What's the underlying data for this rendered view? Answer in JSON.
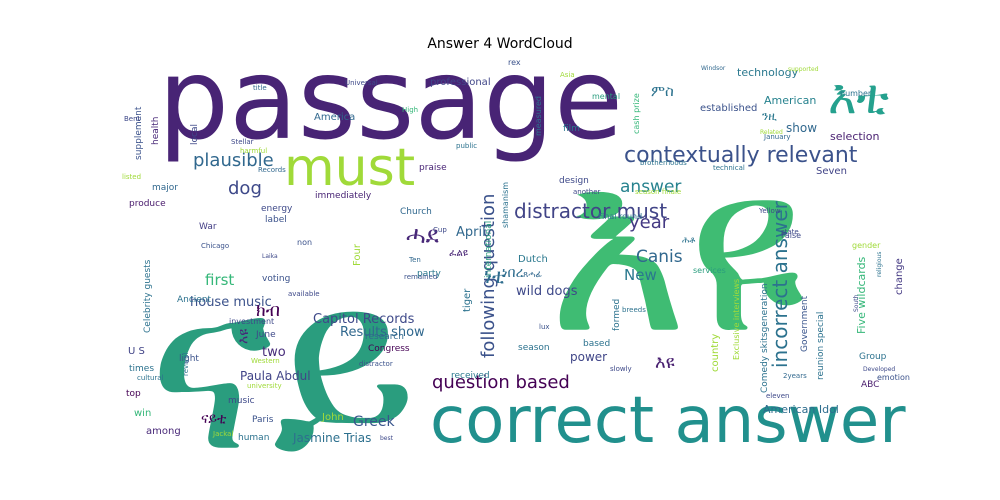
{
  "chart_data": {
    "type": "wordcloud",
    "title": "Answer 4 WordCloud",
    "words": [
      {
        "text": "passage",
        "weight": 1.0,
        "color": "#482475",
        "orient": "h"
      },
      {
        "text": "ናይ",
        "weight": 0.98,
        "color": "#2a9d7e",
        "orient": "h"
      },
      {
        "text": "እዩ",
        "weight": 0.96,
        "color": "#3fbc73",
        "orient": "h"
      },
      {
        "text": "correct answer",
        "weight": 0.62,
        "color": "#21908d",
        "orient": "h"
      },
      {
        "text": "must",
        "weight": 0.45,
        "color": "#a0da39",
        "orient": "h"
      },
      {
        "text": "እቲ",
        "weight": 0.42,
        "color": "#25a18e",
        "orient": "h"
      },
      {
        "text": "contextually relevant",
        "weight": 0.3,
        "color": "#3b528b",
        "orient": "h"
      },
      {
        "text": "distractor must",
        "weight": 0.27,
        "color": "#414487",
        "orient": "h"
      },
      {
        "text": "incorrect answer",
        "weight": 0.27,
        "color": "#2c728e",
        "orient": "v"
      },
      {
        "text": "following question",
        "weight": 0.26,
        "color": "#3b528b",
        "orient": "v"
      },
      {
        "text": "question based",
        "weight": 0.25,
        "color": "#440154",
        "orient": "h"
      },
      {
        "text": "plausible",
        "weight": 0.22,
        "color": "#31688e",
        "orient": "h"
      },
      {
        "text": "dog",
        "weight": 0.21,
        "color": "#3e4989",
        "orient": "h"
      },
      {
        "text": "year",
        "weight": 0.21,
        "color": "#443983",
        "orient": "h"
      },
      {
        "text": "ሓደ",
        "weight": 0.2,
        "color": "#482878",
        "orient": "h"
      },
      {
        "text": "answer",
        "weight": 0.18,
        "color": "#26828e",
        "orient": "h"
      },
      {
        "text": "Canis",
        "weight": 0.18,
        "color": "#31688e",
        "orient": "h"
      },
      {
        "text": "New",
        "weight": 0.17,
        "color": "#2a788e",
        "orient": "h"
      },
      {
        "text": "first",
        "weight": 0.16,
        "color": "#35b779",
        "orient": "h"
      },
      {
        "text": "house music",
        "weight": 0.14,
        "color": "#3b528b",
        "orient": "h"
      },
      {
        "text": "Results show",
        "weight": 0.14,
        "color": "#31688e",
        "orient": "h"
      },
      {
        "text": "Capitol Records",
        "weight": 0.14,
        "color": "#3e4989",
        "orient": "h"
      },
      {
        "text": "two",
        "weight": 0.14,
        "color": "#472c7a",
        "orient": "h"
      },
      {
        "text": "wild dogs",
        "weight": 0.14,
        "color": "#3e4989",
        "orient": "h"
      },
      {
        "text": "Paula Abdul",
        "weight": 0.13,
        "color": "#414487",
        "orient": "h"
      },
      {
        "text": "power",
        "weight": 0.13,
        "color": "#404688",
        "orient": "h"
      },
      {
        "text": "Greek",
        "weight": 0.14,
        "color": "#39558c",
        "orient": "h"
      },
      {
        "text": "Jasmine Trias",
        "weight": 0.12,
        "color": "#2d708e",
        "orient": "h"
      },
      {
        "text": "American Idol",
        "weight": 0.12,
        "color": "#2e6d8e",
        "orient": "h"
      },
      {
        "text": "American",
        "weight": 0.12,
        "color": "#26828e",
        "orient": "h"
      },
      {
        "text": "show",
        "weight": 0.12,
        "color": "#31688e",
        "orient": "h"
      },
      {
        "text": "technology",
        "weight": 0.11,
        "color": "#2a788e",
        "orient": "h"
      },
      {
        "text": "April",
        "weight": 0.13,
        "color": "#31688e",
        "orient": "h"
      },
      {
        "text": "ነበረ",
        "weight": 0.13,
        "color": "#2e6d8e",
        "orient": "h"
      },
      {
        "text": "Five wildcards",
        "weight": 0.11,
        "color": "#35b779",
        "orient": "v"
      },
      {
        "text": "Comedy skitsgeneration",
        "weight": 0.09,
        "color": "#2c728e",
        "orient": "v"
      },
      {
        "text": "reunion special",
        "weight": 0.09,
        "color": "#2c728e",
        "orient": "v"
      },
      {
        "text": "Government",
        "weight": 0.09,
        "color": "#39558c",
        "orient": "v"
      },
      {
        "text": "change",
        "weight": 0.1,
        "color": "#443983",
        "orient": "v"
      },
      {
        "text": "selection",
        "weight": 0.1,
        "color": "#481f70",
        "orient": "h"
      },
      {
        "text": "Seven",
        "weight": 0.1,
        "color": "#414487",
        "orient": "h"
      },
      {
        "text": "America",
        "weight": 0.1,
        "color": "#31688e",
        "orient": "h"
      },
      {
        "text": "professional",
        "weight": 0.1,
        "color": "#404688",
        "orient": "h"
      },
      {
        "text": "immediately",
        "weight": 0.09,
        "color": "#482475",
        "orient": "h"
      },
      {
        "text": "label",
        "weight": 0.09,
        "color": "#3b528b",
        "orient": "h"
      },
      {
        "text": "War",
        "weight": 0.09,
        "color": "#433e85",
        "orient": "h"
      },
      {
        "text": "produce",
        "weight": 0.09,
        "color": "#481a6c",
        "orient": "h"
      },
      {
        "text": "major",
        "weight": 0.09,
        "color": "#31688e",
        "orient": "h"
      },
      {
        "text": "voting",
        "weight": 0.09,
        "color": "#3b528b",
        "orient": "h"
      },
      {
        "text": "Ancient",
        "weight": 0.09,
        "color": "#2c728e",
        "orient": "h"
      },
      {
        "text": "times",
        "weight": 0.09,
        "color": "#2c728e",
        "orient": "h"
      },
      {
        "text": "top",
        "weight": 0.09,
        "color": "#440154",
        "orient": "h"
      },
      {
        "text": "win",
        "weight": 0.09,
        "color": "#35b779",
        "orient": "h"
      },
      {
        "text": "among",
        "weight": 0.09,
        "color": "#482878",
        "orient": "h"
      },
      {
        "text": "human",
        "weight": 0.09,
        "color": "#2c728e",
        "orient": "h"
      },
      {
        "text": "John",
        "weight": 0.09,
        "color": "#a0da39",
        "orient": "h"
      },
      {
        "text": "party",
        "weight": 0.09,
        "color": "#2a788e",
        "orient": "h"
      },
      {
        "text": "based",
        "weight": 0.09,
        "color": "#2c728e",
        "orient": "h"
      },
      {
        "text": "season",
        "weight": 0.09,
        "color": "#2c728e",
        "orient": "h"
      },
      {
        "text": "received",
        "weight": 0.08,
        "color": "#2a788e",
        "orient": "h"
      },
      {
        "text": "Congress",
        "weight": 0.08,
        "color": "#440154",
        "orient": "h"
      },
      {
        "text": "research",
        "weight": 0.08,
        "color": "#31688e",
        "orient": "h"
      },
      {
        "text": "June",
        "weight": 0.08,
        "color": "#3e4989",
        "orient": "h"
      },
      {
        "text": "Dutch",
        "weight": 0.08,
        "color": "#2a788e",
        "orient": "h"
      },
      {
        "text": "Group",
        "weight": 0.08,
        "color": "#2c728e",
        "orient": "h"
      },
      {
        "text": "ABC",
        "weight": 0.08,
        "color": "#481a6c",
        "orient": "h"
      },
      {
        "text": "services",
        "weight": 0.08,
        "color": "#2a9d7e",
        "orient": "h"
      },
      {
        "text": "established",
        "weight": 0.08,
        "color": "#3b528b",
        "orient": "h"
      },
      {
        "text": "film",
        "weight": 0.08,
        "color": "#2a788e",
        "orient": "h"
      },
      {
        "text": "design",
        "weight": 0.07,
        "color": "#3e4989",
        "orient": "h"
      },
      {
        "text": "energy",
        "weight": 0.07,
        "color": "#3e4989",
        "orient": "h"
      },
      {
        "text": "Church",
        "weight": 0.07,
        "color": "#31688e",
        "orient": "h"
      },
      {
        "text": "praise",
        "weight": 0.07,
        "color": "#482475",
        "orient": "h"
      },
      {
        "text": "music",
        "weight": 0.07,
        "color": "#3e4989",
        "orient": "h"
      },
      {
        "text": "Paris",
        "weight": 0.07,
        "color": "#3b528b",
        "orient": "h"
      },
      {
        "text": "light",
        "weight": 0.07,
        "color": "#3b528b",
        "orient": "h"
      },
      {
        "text": "U S",
        "weight": 0.08,
        "color": "#414487",
        "orient": "h"
      },
      {
        "text": "investment",
        "weight": 0.07,
        "color": "#3e4989",
        "orient": "h"
      },
      {
        "text": "technical",
        "weight": 0.06,
        "color": "#2c728e",
        "orient": "h"
      },
      {
        "text": "mental",
        "weight": 0.06,
        "color": "#2a9d7e",
        "orient": "h"
      },
      {
        "text": "number",
        "weight": 0.06,
        "color": "#2c728e",
        "orient": "h"
      },
      {
        "text": "title",
        "weight": 0.06,
        "color": "#31688e",
        "orient": "h"
      },
      {
        "text": "Universal",
        "weight": 0.06,
        "color": "#3e4989",
        "orient": "h"
      },
      {
        "text": "High",
        "weight": 0.06,
        "color": "#35b779",
        "orient": "h"
      },
      {
        "text": "public",
        "weight": 0.06,
        "color": "#2c728e",
        "orient": "h"
      },
      {
        "text": "Records",
        "weight": 0.06,
        "color": "#31688e",
        "orient": "h"
      },
      {
        "text": "Stellar",
        "weight": 0.06,
        "color": "#3e4989",
        "orient": "h"
      },
      {
        "text": "harmful",
        "weight": 0.06,
        "color": "#a0da39",
        "orient": "h"
      },
      {
        "text": "local",
        "weight": 0.07,
        "color": "#3e4989",
        "orient": "v"
      },
      {
        "text": "supplement",
        "weight": 0.07,
        "color": "#3b528b",
        "orient": "v"
      },
      {
        "text": "health",
        "weight": 0.07,
        "color": "#482878",
        "orient": "v"
      },
      {
        "text": "Bent",
        "weight": 0.06,
        "color": "#3e4989",
        "orient": "h"
      },
      {
        "text": "listed",
        "weight": 0.06,
        "color": "#a0da39",
        "orient": "h"
      },
      {
        "text": "Celebrity guests",
        "weight": 0.08,
        "color": "#2c728e",
        "orient": "v"
      },
      {
        "text": "Chicago",
        "weight": 0.06,
        "color": "#3b528b",
        "orient": "h"
      },
      {
        "text": "available",
        "weight": 0.05,
        "color": "#3e4989",
        "orient": "h"
      },
      {
        "text": "non",
        "weight": 0.06,
        "color": "#3b528b",
        "orient": "h"
      },
      {
        "text": "Four",
        "weight": 0.07,
        "color": "#a0da39",
        "orient": "v"
      },
      {
        "text": "Western",
        "weight": 0.06,
        "color": "#a0da39",
        "orient": "h"
      },
      {
        "text": "university",
        "weight": 0.05,
        "color": "#a0da39",
        "orient": "h"
      },
      {
        "text": "cultural",
        "weight": 0.05,
        "color": "#2c728e",
        "orient": "h"
      },
      {
        "text": "revival",
        "weight": 0.05,
        "color": "#2c728e",
        "orient": "v"
      },
      {
        "text": "Jackal",
        "weight": 0.05,
        "color": "#a0da39",
        "orient": "h"
      },
      {
        "text": "best",
        "weight": 0.05,
        "color": "#3e4989",
        "orient": "h"
      },
      {
        "text": "distractor",
        "weight": 0.06,
        "color": "#3b528b",
        "orient": "h"
      },
      {
        "text": "remained",
        "weight": 0.06,
        "color": "#3b528b",
        "orient": "h"
      },
      {
        "text": "Ten",
        "weight": 0.05,
        "color": "#31688e",
        "orient": "h"
      },
      {
        "text": "tiger",
        "weight": 0.07,
        "color": "#2c728e",
        "orient": "v"
      },
      {
        "text": "international",
        "weight": 0.06,
        "color": "#2a9d7e",
        "orient": "v"
      },
      {
        "text": "shamanism",
        "weight": 0.05,
        "color": "#2c728e",
        "orient": "v"
      },
      {
        "text": "Cup",
        "weight": 0.06,
        "color": "#3e4989",
        "orient": "h"
      },
      {
        "text": "lux",
        "weight": 0.05,
        "color": "#3b528b",
        "orient": "h"
      },
      {
        "text": "formed",
        "weight": 0.06,
        "color": "#2c728e",
        "orient": "v"
      },
      {
        "text": "slowly",
        "weight": 0.06,
        "color": "#3e4989",
        "orient": "h"
      },
      {
        "text": "breeds",
        "weight": 0.06,
        "color": "#2c728e",
        "orient": "h"
      },
      {
        "text": "country",
        "weight": 0.07,
        "color": "#a0da39",
        "orient": "v"
      },
      {
        "text": "Exclusive interviews",
        "weight": 0.06,
        "color": "#a0da39",
        "orient": "v"
      },
      {
        "text": "season finale",
        "weight": 0.06,
        "color": "#a0da39",
        "orient": "h"
      },
      {
        "text": "Final round",
        "weight": 0.06,
        "color": "#2c728e",
        "orient": "h"
      },
      {
        "text": "brotherhoods",
        "weight": 0.06,
        "color": "#2c728e",
        "orient": "h"
      },
      {
        "text": "another",
        "weight": 0.05,
        "color": "#3e4989",
        "orient": "h"
      },
      {
        "text": "measured",
        "weight": 0.06,
        "color": "#2c728e",
        "orient": "v"
      },
      {
        "text": "cash prize",
        "weight": 0.06,
        "color": "#35b779",
        "orient": "v"
      },
      {
        "text": "rex",
        "weight": 0.05,
        "color": "#3b528b",
        "orient": "h"
      },
      {
        "text": "Asia",
        "weight": 0.04,
        "color": "#a0da39",
        "orient": "h"
      },
      {
        "text": "Windsor",
        "weight": 0.04,
        "color": "#31688e",
        "orient": "h"
      },
      {
        "text": "supported",
        "weight": 0.04,
        "color": "#a0da39",
        "orient": "h"
      },
      {
        "text": "Related",
        "weight": 0.05,
        "color": "#a0da39",
        "orient": "h"
      },
      {
        "text": "January",
        "weight": 0.05,
        "color": "#31688e",
        "orient": "h"
      },
      {
        "text": "Yellow",
        "weight": 0.06,
        "color": "#3e4989",
        "orient": "h"
      },
      {
        "text": "state",
        "weight": 0.06,
        "color": "#3e4989",
        "orient": "h"
      },
      {
        "text": "False",
        "weight": 0.06,
        "color": "#3e4989",
        "orient": "h"
      },
      {
        "text": "gender",
        "weight": 0.06,
        "color": "#a0da39",
        "orient": "h"
      },
      {
        "text": "religious",
        "weight": 0.05,
        "color": "#2c728e",
        "orient": "v"
      },
      {
        "text": "South",
        "weight": 0.05,
        "color": "#3e4989",
        "orient": "v"
      },
      {
        "text": "emotion",
        "weight": 0.06,
        "color": "#3b528b",
        "orient": "h"
      },
      {
        "text": "Developed",
        "weight": 0.05,
        "color": "#3e4989",
        "orient": "h"
      },
      {
        "text": "2years",
        "weight": 0.06,
        "color": "#31688e",
        "orient": "h"
      },
      {
        "text": "eleven",
        "weight": 0.05,
        "color": "#3e4989",
        "orient": "h"
      },
      {
        "text": "Laika",
        "weight": 0.04,
        "color": "#3e4989",
        "orient": "h"
      },
      {
        "text": "ነቲ",
        "weight": 0.13,
        "color": "#2e6d8e",
        "orient": "h"
      },
      {
        "text": "ክብ",
        "weight": 0.12,
        "color": "#440154",
        "orient": "h"
      },
      {
        "text": "እዩ",
        "weight": 0.11,
        "color": "#482878",
        "orient": "v"
      },
      {
        "text": "ናይቲ",
        "weight": 0.1,
        "color": "#440154",
        "orient": "h"
      },
      {
        "text": "እዩ",
        "weight": 0.12,
        "color": "#481f70",
        "orient": "h"
      },
      {
        "text": "ምስ",
        "weight": 0.12,
        "color": "#2c728e",
        "orient": "h"
      },
      {
        "text": "ንዚ",
        "weight": 0.1,
        "color": "#2a788e",
        "orient": "h"
      },
      {
        "text": "ጸሓፊ",
        "weight": 0.07,
        "color": "#31688e",
        "orient": "h"
      },
      {
        "text": "ፈልዩ",
        "weight": 0.08,
        "color": "#482475",
        "orient": "h"
      },
      {
        "text": "ሕቶ",
        "weight": 0.08,
        "color": "#2c728e",
        "orient": "h"
      }
    ]
  }
}
